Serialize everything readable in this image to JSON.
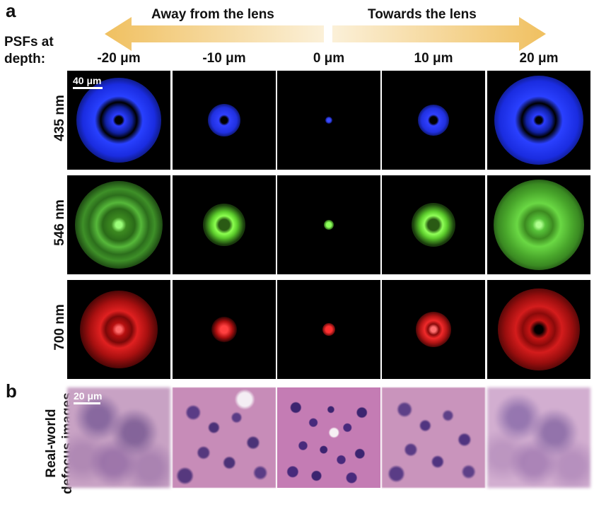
{
  "panels": {
    "a": "a",
    "b": "b"
  },
  "header": {
    "psf_label_line1": "PSFs at",
    "psf_label_line2": "depth:",
    "arrow_left": "Away from the lens",
    "arrow_right": "Towards the lens",
    "arrow_color": "#f2c86a"
  },
  "depths": [
    "-20 μm",
    "-10 μm",
    "0 μm",
    "10 μm",
    "20 μm"
  ],
  "wavelengths": [
    {
      "label": "435 nm",
      "color": "#2a3cff"
    },
    {
      "label": "546 nm",
      "color": "#5fd83a"
    },
    {
      "label": "700 nm",
      "color": "#ff2020"
    }
  ],
  "scalebars": {
    "psf": "40 μm",
    "defocus": "20 μm"
  },
  "defocus_label_line1": "Real-world",
  "defocus_label_line2": "defocus images"
}
